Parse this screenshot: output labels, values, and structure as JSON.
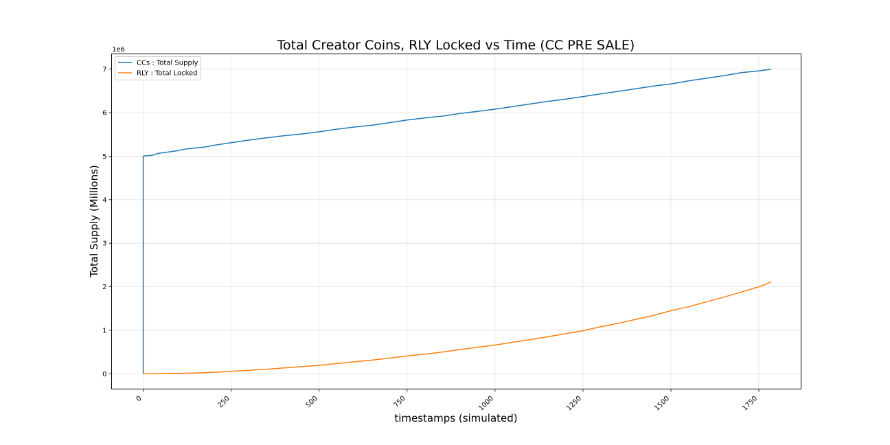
{
  "chart_data": {
    "type": "line",
    "title": "Total Creator Coins, RLY Locked vs Time (CC PRE SALE)",
    "xlabel": "timestamps (simulated)",
    "ylabel": "Total Supply (Millions)",
    "y_offset_text": "1e6",
    "xlim": [
      -90,
      1870
    ],
    "ylim": [
      -350000,
      7350000
    ],
    "x_ticks": [
      0,
      250,
      500,
      750,
      1000,
      1250,
      1500,
      1750
    ],
    "x_tick_labels": [
      "0",
      "250",
      "500",
      "750",
      "1000",
      "1250",
      "1500",
      "1750"
    ],
    "y_ticks": [
      0,
      1000000,
      2000000,
      3000000,
      4000000,
      5000000,
      6000000,
      7000000
    ],
    "y_tick_labels": [
      "0",
      "1",
      "2",
      "3",
      "4",
      "5",
      "6",
      "7"
    ],
    "grid": true,
    "legend_position": "upper-left",
    "series": [
      {
        "name": "CCs : Total Supply",
        "color": "#1f77b4",
        "x": [
          0,
          0,
          0,
          10,
          20,
          30,
          40,
          50,
          75,
          100,
          125,
          150,
          175,
          200,
          250,
          300,
          350,
          400,
          450,
          500,
          550,
          600,
          650,
          700,
          750,
          800,
          850,
          900,
          950,
          1000,
          1050,
          1100,
          1150,
          1200,
          1250,
          1300,
          1350,
          1400,
          1450,
          1500,
          1550,
          1600,
          1650,
          1700,
          1750,
          1785
        ],
        "y": [
          0,
          4990000,
          5000000,
          5010000,
          5015000,
          5030000,
          5060000,
          5075000,
          5100000,
          5130000,
          5170000,
          5190000,
          5210000,
          5250000,
          5310000,
          5370000,
          5420000,
          5470000,
          5510000,
          5560000,
          5620000,
          5670000,
          5710000,
          5770000,
          5830000,
          5880000,
          5920000,
          5980000,
          6030000,
          6080000,
          6140000,
          6200000,
          6260000,
          6310000,
          6370000,
          6430000,
          6490000,
          6550000,
          6610000,
          6660000,
          6730000,
          6790000,
          6850000,
          6920000,
          6960000,
          7000000
        ]
      },
      {
        "name": "RLY : Total Locked",
        "color": "#ff7f0e",
        "x": [
          0,
          50,
          100,
          150,
          200,
          250,
          300,
          350,
          400,
          450,
          500,
          550,
          600,
          650,
          700,
          750,
          800,
          850,
          900,
          950,
          1000,
          1050,
          1100,
          1150,
          1200,
          1250,
          1300,
          1350,
          1400,
          1450,
          1500,
          1550,
          1600,
          1650,
          1700,
          1750,
          1785
        ],
        "y": [
          0,
          3000,
          10000,
          20000,
          35000,
          55000,
          80000,
          105000,
          135000,
          165000,
          195000,
          235000,
          275000,
          315000,
          360000,
          410000,
          450000,
          500000,
          555000,
          610000,
          660000,
          725000,
          785000,
          850000,
          920000,
          990000,
          1080000,
          1160000,
          1250000,
          1340000,
          1450000,
          1540000,
          1650000,
          1760000,
          1880000,
          2000000,
          2110000
        ]
      }
    ]
  }
}
